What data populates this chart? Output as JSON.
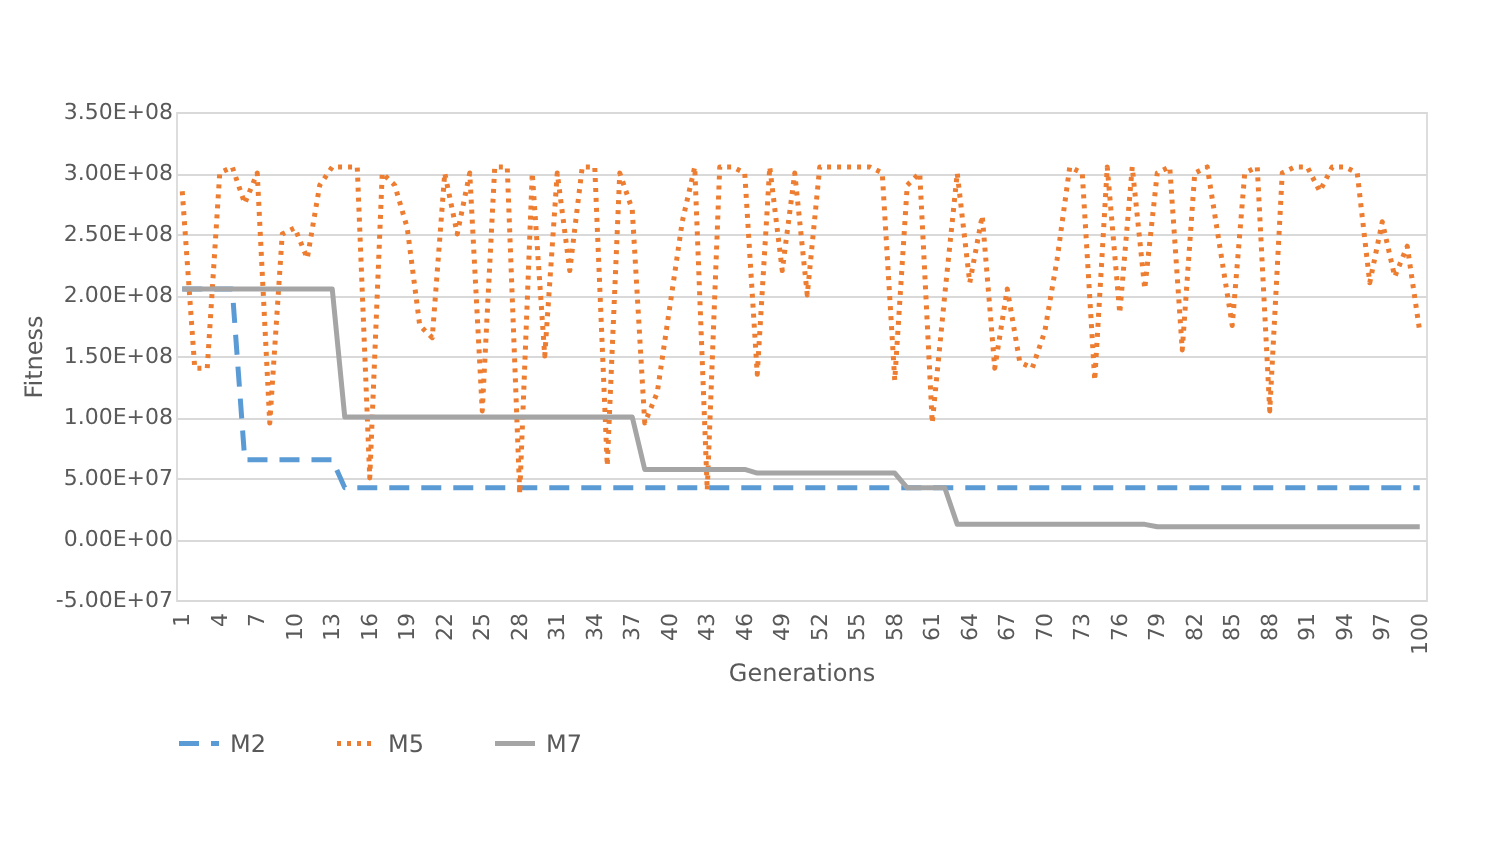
{
  "chart_data": {
    "type": "line",
    "xlabel": "Generations",
    "ylabel": "Fitness",
    "categories": [
      "1",
      null,
      null,
      "4",
      null,
      null,
      "7",
      null,
      null,
      "10",
      null,
      null,
      "13",
      null,
      null,
      "16",
      null,
      null,
      "19",
      null,
      null,
      "22",
      null,
      null,
      "25",
      null,
      null,
      "28",
      null,
      null,
      "31",
      null,
      null,
      "34",
      null,
      null,
      "37",
      null,
      null,
      "40",
      null,
      null,
      "43",
      null,
      null,
      "46",
      null,
      null,
      "49",
      null,
      null,
      "52",
      null,
      null,
      "55",
      null,
      null,
      "58",
      null,
      null,
      "61",
      null,
      null,
      "64",
      null,
      null,
      "67",
      null,
      null,
      "70",
      null,
      null,
      "73",
      null,
      null,
      "76",
      null,
      null,
      "79",
      null,
      null,
      "82",
      null,
      null,
      "85",
      null,
      null,
      "88",
      null,
      null,
      "91",
      null,
      null,
      "94",
      null,
      null,
      "97",
      null,
      null,
      "100"
    ],
    "series": [
      {
        "name": "M2",
        "color": "#5b9bd5",
        "line_style": "dashed",
        "values": [
          205000000.0,
          205000000.0,
          205000000.0,
          205000000.0,
          205000000.0,
          65000000.0,
          65000000.0,
          65000000.0,
          65000000.0,
          65000000.0,
          65000000.0,
          65000000.0,
          65000000.0,
          42000000.0,
          42000000.0,
          42000000.0,
          42000000.0,
          42000000.0,
          42000000.0,
          42000000.0,
          42000000.0,
          42000000.0,
          42000000.0,
          42000000.0,
          42000000.0,
          42000000.0,
          42000000.0,
          42000000.0,
          42000000.0,
          42000000.0,
          42000000.0,
          42000000.0,
          42000000.0,
          42000000.0,
          42000000.0,
          42000000.0,
          42000000.0,
          42000000.0,
          42000000.0,
          42000000.0,
          42000000.0,
          42000000.0,
          42000000.0,
          42000000.0,
          42000000.0,
          42000000.0,
          42000000.0,
          42000000.0,
          42000000.0,
          42000000.0,
          42000000.0,
          42000000.0,
          42000000.0,
          42000000.0,
          42000000.0,
          42000000.0,
          42000000.0,
          42000000.0,
          42000000.0,
          42000000.0,
          42000000.0,
          42000000.0,
          42000000.0,
          42000000.0,
          42000000.0,
          42000000.0,
          42000000.0,
          42000000.0,
          42000000.0,
          42000000.0,
          42000000.0,
          42000000.0,
          42000000.0,
          42000000.0,
          42000000.0,
          42000000.0,
          42000000.0,
          42000000.0,
          42000000.0,
          42000000.0,
          42000000.0,
          42000000.0,
          42000000.0,
          42000000.0,
          42000000.0,
          42000000.0,
          42000000.0,
          42000000.0,
          42000000.0,
          42000000.0,
          42000000.0,
          42000000.0,
          42000000.0,
          42000000.0,
          42000000.0,
          42000000.0,
          42000000.0,
          42000000.0,
          42000000.0,
          42000000.0
        ]
      },
      {
        "name": "M5",
        "color": "#ed7d31",
        "line_style": "dotted",
        "values": [
          285000000.0,
          140000000.0,
          140000000.0,
          300000000.0,
          305000000.0,
          275000000.0,
          300000000.0,
          95000000.0,
          250000000.0,
          255000000.0,
          230000000.0,
          290000000.0,
          305000000.0,
          305000000.0,
          305000000.0,
          50000000.0,
          300000000.0,
          290000000.0,
          255000000.0,
          175000000.0,
          165000000.0,
          300000000.0,
          250000000.0,
          300000000.0,
          105000000.0,
          305000000.0,
          305000000.0,
          37000000.0,
          300000000.0,
          150000000.0,
          300000000.0,
          220000000.0,
          305000000.0,
          305000000.0,
          60000000.0,
          300000000.0,
          270000000.0,
          95000000.0,
          120000000.0,
          190000000.0,
          260000000.0,
          305000000.0,
          40000000.0,
          305000000.0,
          305000000.0,
          300000000.0,
          135000000.0,
          305000000.0,
          220000000.0,
          300000000.0,
          200000000.0,
          305000000.0,
          305000000.0,
          305000000.0,
          305000000.0,
          305000000.0,
          300000000.0,
          130000000.0,
          290000000.0,
          300000000.0,
          95000000.0,
          200000000.0,
          300000000.0,
          210000000.0,
          265000000.0,
          140000000.0,
          205000000.0,
          145000000.0,
          140000000.0,
          170000000.0,
          230000000.0,
          305000000.0,
          300000000.0,
          130000000.0,
          305000000.0,
          185000000.0,
          305000000.0,
          205000000.0,
          300000000.0,
          305000000.0,
          155000000.0,
          300000000.0,
          305000000.0,
          240000000.0,
          175000000.0,
          300000000.0,
          305000000.0,
          105000000.0,
          300000000.0,
          305000000.0,
          305000000.0,
          285000000.0,
          305000000.0,
          305000000.0,
          300000000.0,
          210000000.0,
          260000000.0,
          215000000.0,
          240000000.0,
          170000000.0
        ]
      },
      {
        "name": "M7",
        "color": "#a5a5a5",
        "line_style": "solid",
        "values": [
          205000000.0,
          205000000.0,
          205000000.0,
          205000000.0,
          205000000.0,
          205000000.0,
          205000000.0,
          205000000.0,
          205000000.0,
          205000000.0,
          205000000.0,
          205000000.0,
          205000000.0,
          100000000.0,
          100000000.0,
          100000000.0,
          100000000.0,
          100000000.0,
          100000000.0,
          100000000.0,
          100000000.0,
          100000000.0,
          100000000.0,
          100000000.0,
          100000000.0,
          100000000.0,
          100000000.0,
          100000000.0,
          100000000.0,
          100000000.0,
          100000000.0,
          100000000.0,
          100000000.0,
          100000000.0,
          100000000.0,
          100000000.0,
          100000000.0,
          57000000.0,
          57000000.0,
          57000000.0,
          57000000.0,
          57000000.0,
          57000000.0,
          57000000.0,
          57000000.0,
          57000000.0,
          54000000.0,
          54000000.0,
          54000000.0,
          54000000.0,
          54000000.0,
          54000000.0,
          54000000.0,
          54000000.0,
          54000000.0,
          54000000.0,
          54000000.0,
          54000000.0,
          42000000.0,
          42000000.0,
          42000000.0,
          42000000.0,
          12000000.0,
          12000000.0,
          12000000.0,
          12000000.0,
          12000000.0,
          12000000.0,
          12000000.0,
          12000000.0,
          12000000.0,
          12000000.0,
          12000000.0,
          12000000.0,
          12000000.0,
          12000000.0,
          12000000.0,
          12000000.0,
          10000000.0,
          10000000.0,
          10000000.0,
          10000000.0,
          10000000.0,
          10000000.0,
          10000000.0,
          10000000.0,
          10000000.0,
          10000000.0,
          10000000.0,
          10000000.0,
          10000000.0,
          10000000.0,
          10000000.0,
          10000000.0,
          10000000.0,
          10000000.0,
          10000000.0,
          10000000.0,
          10000000.0,
          10000000.0
        ]
      }
    ],
    "ylim": [
      -50000000.0,
      350000000.0
    ],
    "yticks": [
      {
        "value": -50000000.0,
        "label": "-5.00E+07"
      },
      {
        "value": 0,
        "label": "0.00E+00"
      },
      {
        "value": 50000000.0,
        "label": "5.00E+07"
      },
      {
        "value": 100000000.0,
        "label": "1.00E+08"
      },
      {
        "value": 150000000.0,
        "label": "1.50E+08"
      },
      {
        "value": 200000000.0,
        "label": "2.00E+08"
      },
      {
        "value": 250000000.0,
        "label": "2.50E+08"
      },
      {
        "value": 300000000.0,
        "label": "3.00E+08"
      },
      {
        "value": 350000000.0,
        "label": "3.50E+08"
      }
    ],
    "grid": "y",
    "legend": "bottom",
    "marker": "none"
  }
}
